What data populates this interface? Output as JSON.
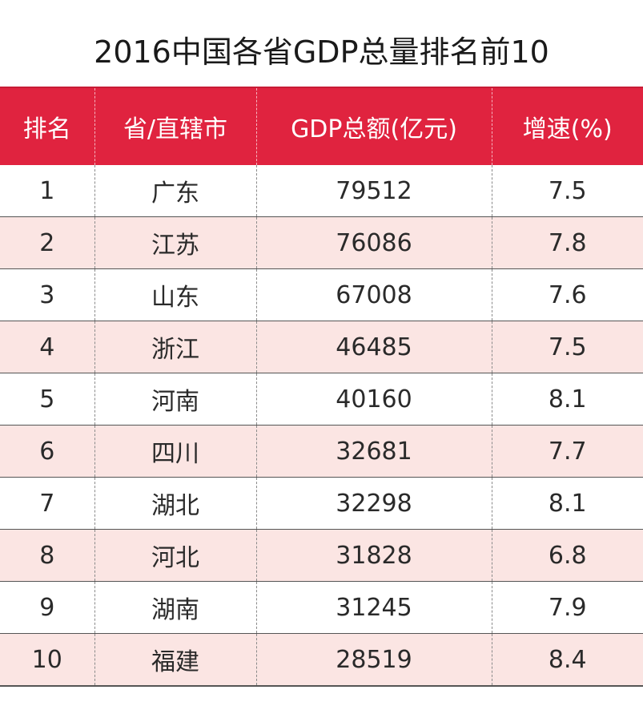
{
  "title": "2016中国各省GDP总量排名前10",
  "chart_data": {
    "type": "table",
    "title": "2016中国各省GDP总量排名前10",
    "columns": [
      "排名",
      "省/直辖市",
      "GDP总额(亿元)",
      "增速(%)"
    ],
    "rows": [
      [
        "1",
        "广东",
        "79512",
        "7.5"
      ],
      [
        "2",
        "江苏",
        "76086",
        "7.8"
      ],
      [
        "3",
        "山东",
        "67008",
        "7.6"
      ],
      [
        "4",
        "浙江",
        "46485",
        "7.5"
      ],
      [
        "5",
        "河南",
        "40160",
        "8.1"
      ],
      [
        "6",
        "四川",
        "32681",
        "7.7"
      ],
      [
        "7",
        "湖北",
        "32298",
        "8.1"
      ],
      [
        "8",
        "河北",
        "31828",
        "6.8"
      ],
      [
        "9",
        "湖南",
        "31245",
        "7.9"
      ],
      [
        "10",
        "福建",
        "28519",
        "8.4"
      ]
    ]
  },
  "colors": {
    "header_bg": "#e0233f",
    "header_text": "#ffffff",
    "row_alt_bg": "#fbe5e3",
    "row_bg": "#ffffff"
  }
}
